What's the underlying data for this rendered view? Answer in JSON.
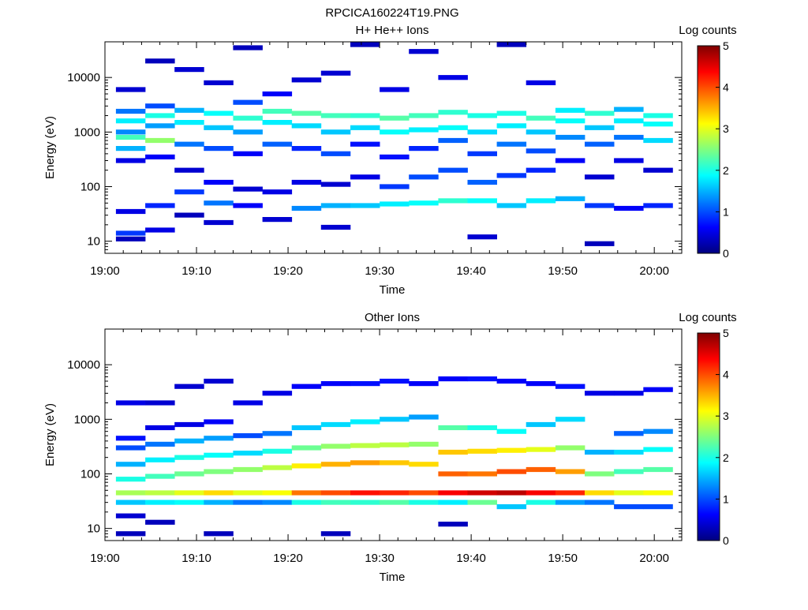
{
  "figure_title": "RPCICA160224T19.PNG",
  "colorbar": {
    "label": "Log counts",
    "min": 0,
    "max": 5,
    "ticks": [
      "0",
      "1",
      "2",
      "3",
      "4",
      "5"
    ],
    "colormap": [
      "#00007f",
      "#0000ff",
      "#007fff",
      "#00ffff",
      "#7fff7f",
      "#ffff00",
      "#ff7f00",
      "#ff0000",
      "#7f0000"
    ]
  },
  "chart_data": [
    {
      "type": "heatmap",
      "title": "H+ He++ Ions",
      "xlabel": "Time",
      "ylabel": "Energy (eV)",
      "x_ticks": [
        "19:00",
        "19:10",
        "19:20",
        "19:30",
        "19:40",
        "19:50",
        "20:00"
      ],
      "x_tick_minutes": [
        0,
        10,
        20,
        30,
        40,
        50,
        60
      ],
      "xlim_minutes": [
        0,
        63
      ],
      "y_scale": "log",
      "ylim": [
        6,
        45000
      ],
      "y_ticks": [
        "10",
        "100",
        "1000",
        "10000"
      ],
      "y_tick_values": [
        10,
        100,
        1000,
        10000
      ],
      "color_scale": "Log counts",
      "time_bins_minutes": [
        1.2,
        4.4,
        7.6,
        10.8,
        14.0,
        17.2,
        20.4,
        23.6,
        26.8,
        30.0,
        33.2,
        36.4,
        39.6,
        42.8,
        46.0,
        49.2,
        52.4,
        55.6,
        58.8
      ],
      "cells": [
        [
          0,
          14.0,
          0.9
        ],
        [
          0,
          300,
          0.5
        ],
        [
          0,
          500,
          1.5
        ],
        [
          0,
          800,
          2.2
        ],
        [
          0,
          1000,
          1.3
        ],
        [
          0,
          1600,
          1.8
        ],
        [
          0,
          2400,
          1.2
        ],
        [
          0,
          35,
          0.5
        ],
        [
          0,
          11,
          0.3
        ],
        [
          0,
          6000,
          0.4
        ],
        [
          1,
          16.0,
          0.5
        ],
        [
          1,
          45,
          0.8
        ],
        [
          1,
          350,
          0.6
        ],
        [
          1,
          700,
          2.6
        ],
        [
          1,
          1300,
          1.4
        ],
        [
          1,
          2000,
          2.0
        ],
        [
          1,
          3000,
          1.0
        ],
        [
          1,
          20000,
          0.3
        ],
        [
          2,
          30,
          0.3
        ],
        [
          2,
          80,
          0.9
        ],
        [
          2,
          200,
          0.4
        ],
        [
          2,
          600,
          1.2
        ],
        [
          2,
          1500,
          1.8
        ],
        [
          2,
          2500,
          1.5
        ],
        [
          2,
          14000,
          0.4
        ],
        [
          3,
          22,
          0.4
        ],
        [
          3,
          50,
          1.2
        ],
        [
          3,
          120,
          0.6
        ],
        [
          3,
          500,
          1.0
        ],
        [
          3,
          1200,
          1.6
        ],
        [
          3,
          2200,
          1.9
        ],
        [
          3,
          8000,
          0.4
        ],
        [
          4,
          45,
          0.6
        ],
        [
          4,
          90,
          0.4
        ],
        [
          4,
          400,
          0.6
        ],
        [
          4,
          1000,
          1.4
        ],
        [
          4,
          1800,
          2.1
        ],
        [
          4,
          3500,
          1.0
        ],
        [
          4,
          35000,
          0.3
        ],
        [
          5,
          25,
          0.4
        ],
        [
          5,
          80,
          0.5
        ],
        [
          5,
          600,
          1.1
        ],
        [
          5,
          1500,
          1.8
        ],
        [
          5,
          2400,
          2.2
        ],
        [
          5,
          5000,
          0.6
        ],
        [
          6,
          40,
          1.3
        ],
        [
          6,
          120,
          0.5
        ],
        [
          6,
          500,
          0.8
        ],
        [
          6,
          1300,
          1.7
        ],
        [
          6,
          2200,
          2.3
        ],
        [
          6,
          9000,
          0.4
        ],
        [
          7,
          18,
          0.4
        ],
        [
          7,
          45,
          1.5
        ],
        [
          7,
          110,
          0.4
        ],
        [
          7,
          400,
          1.0
        ],
        [
          7,
          1000,
          1.6
        ],
        [
          7,
          2000,
          2.2
        ],
        [
          7,
          12000,
          0.4
        ],
        [
          8,
          45,
          1.6
        ],
        [
          8,
          150,
          0.5
        ],
        [
          8,
          600,
          0.7
        ],
        [
          8,
          1200,
          1.7
        ],
        [
          8,
          2000,
          2.1
        ],
        [
          8,
          40000,
          0.3
        ],
        [
          9,
          48,
          1.8
        ],
        [
          9,
          100,
          0.9
        ],
        [
          9,
          350,
          0.7
        ],
        [
          9,
          1000,
          1.9
        ],
        [
          9,
          1800,
          2.3
        ],
        [
          9,
          6000,
          0.5
        ],
        [
          10,
          50,
          1.9
        ],
        [
          10,
          150,
          1.0
        ],
        [
          10,
          500,
          0.8
        ],
        [
          10,
          1100,
          1.8
        ],
        [
          10,
          2000,
          2.2
        ],
        [
          10,
          30000,
          0.4
        ],
        [
          11,
          55,
          2.1
        ],
        [
          11,
          200,
          1.0
        ],
        [
          11,
          700,
          1.1
        ],
        [
          11,
          1200,
          1.9
        ],
        [
          11,
          2300,
          2.1
        ],
        [
          11,
          10000,
          0.5
        ],
        [
          12,
          12,
          0.4
        ],
        [
          12,
          55,
          1.9
        ],
        [
          12,
          120,
          1.1
        ],
        [
          12,
          400,
          0.9
        ],
        [
          12,
          1000,
          1.7
        ],
        [
          12,
          2000,
          2.0
        ],
        [
          13,
          45,
          1.6
        ],
        [
          13,
          160,
          0.9
        ],
        [
          13,
          600,
          1.2
        ],
        [
          13,
          1300,
          1.8
        ],
        [
          13,
          2200,
          2.0
        ],
        [
          13,
          40000,
          0.3
        ],
        [
          14,
          55,
          1.8
        ],
        [
          14,
          200,
          0.8
        ],
        [
          14,
          450,
          1.0
        ],
        [
          14,
          1000,
          1.6
        ],
        [
          14,
          1800,
          2.2
        ],
        [
          14,
          8000,
          0.5
        ],
        [
          15,
          60,
          1.5
        ],
        [
          15,
          300,
          0.6
        ],
        [
          15,
          800,
          1.3
        ],
        [
          15,
          1600,
          1.9
        ],
        [
          15,
          2500,
          1.8
        ],
        [
          16,
          45,
          0.9
        ],
        [
          16,
          150,
          0.4
        ],
        [
          16,
          600,
          1.1
        ],
        [
          16,
          1200,
          1.6
        ],
        [
          16,
          2200,
          2.1
        ],
        [
          16,
          9,
          0.3
        ],
        [
          17,
          40,
          0.6
        ],
        [
          17,
          300,
          0.5
        ],
        [
          17,
          800,
          1.2
        ],
        [
          17,
          1600,
          1.8
        ],
        [
          17,
          2600,
          1.5
        ],
        [
          18,
          45,
          0.8
        ],
        [
          18,
          200,
          0.4
        ],
        [
          18,
          700,
          1.7
        ],
        [
          18,
          1400,
          1.9
        ],
        [
          18,
          2000,
          2.0
        ]
      ]
    },
    {
      "type": "heatmap",
      "title": "Other Ions",
      "xlabel": "Time",
      "ylabel": "Energy (eV)",
      "x_ticks": [
        "19:00",
        "19:10",
        "19:20",
        "19:30",
        "19:40",
        "19:50",
        "20:00"
      ],
      "x_tick_minutes": [
        0,
        10,
        20,
        30,
        40,
        50,
        60
      ],
      "xlim_minutes": [
        0,
        63
      ],
      "y_scale": "log",
      "ylim": [
        6,
        45000
      ],
      "y_ticks": [
        "10",
        "100",
        "1000",
        "10000"
      ],
      "y_tick_values": [
        10,
        100,
        1000,
        10000
      ],
      "color_scale": "Log counts",
      "time_bins_minutes": [
        1.2,
        4.4,
        7.6,
        10.8,
        14.0,
        17.2,
        20.4,
        23.6,
        26.8,
        30.0,
        33.2,
        36.4,
        39.6,
        42.8,
        46.0,
        49.2,
        52.4,
        55.6,
        58.8
      ],
      "cells": [
        [
          0,
          8,
          0.3
        ],
        [
          0,
          17,
          0.4
        ],
        [
          0,
          30,
          1.6
        ],
        [
          0,
          45,
          2.7
        ],
        [
          0,
          80,
          2.0
        ],
        [
          0,
          150,
          1.5
        ],
        [
          0,
          300,
          1.0
        ],
        [
          0,
          450,
          0.7
        ],
        [
          0,
          2000,
          0.5
        ],
        [
          1,
          13,
          0.3
        ],
        [
          1,
          30,
          1.8
        ],
        [
          1,
          45,
          2.8
        ],
        [
          1,
          90,
          2.2
        ],
        [
          1,
          180,
          1.8
        ],
        [
          1,
          350,
          1.2
        ],
        [
          1,
          700,
          0.5
        ],
        [
          1,
          2000,
          0.4
        ],
        [
          2,
          30,
          1.9
        ],
        [
          2,
          45,
          3.0
        ],
        [
          2,
          100,
          2.4
        ],
        [
          2,
          200,
          2.0
        ],
        [
          2,
          400,
          1.5
        ],
        [
          2,
          800,
          0.5
        ],
        [
          2,
          4000,
          0.4
        ],
        [
          3,
          8,
          0.3
        ],
        [
          3,
          30,
          1.5
        ],
        [
          3,
          45,
          3.3
        ],
        [
          3,
          110,
          2.5
        ],
        [
          3,
          220,
          1.9
        ],
        [
          3,
          450,
          1.4
        ],
        [
          3,
          900,
          0.6
        ],
        [
          3,
          5000,
          0.4
        ],
        [
          4,
          30,
          1.2
        ],
        [
          4,
          45,
          3.0
        ],
        [
          4,
          120,
          2.6
        ],
        [
          4,
          240,
          1.7
        ],
        [
          4,
          500,
          1.0
        ],
        [
          4,
          2000,
          0.5
        ],
        [
          5,
          30,
          1.3
        ],
        [
          5,
          45,
          3.1
        ],
        [
          5,
          130,
          2.8
        ],
        [
          5,
          260,
          2.0
        ],
        [
          5,
          550,
          1.2
        ],
        [
          5,
          3000,
          0.5
        ],
        [
          6,
          30,
          2.0
        ],
        [
          6,
          45,
          3.8
        ],
        [
          6,
          140,
          3.2
        ],
        [
          6,
          300,
          2.4
        ],
        [
          6,
          700,
          1.6
        ],
        [
          6,
          4000,
          0.6
        ],
        [
          7,
          8,
          0.3
        ],
        [
          7,
          30,
          2.2
        ],
        [
          7,
          45,
          4.0
        ],
        [
          7,
          150,
          3.5
        ],
        [
          7,
          320,
          2.6
        ],
        [
          7,
          800,
          1.7
        ],
        [
          7,
          4500,
          0.6
        ],
        [
          8,
          30,
          2.1
        ],
        [
          8,
          45,
          4.3
        ],
        [
          8,
          160,
          3.6
        ],
        [
          8,
          330,
          2.8
        ],
        [
          8,
          900,
          1.8
        ],
        [
          8,
          4500,
          0.7
        ],
        [
          9,
          30,
          2.3
        ],
        [
          9,
          45,
          4.2
        ],
        [
          9,
          160,
          3.4
        ],
        [
          9,
          340,
          2.8
        ],
        [
          9,
          1000,
          1.6
        ],
        [
          9,
          5000,
          0.7
        ],
        [
          10,
          30,
          2.0
        ],
        [
          10,
          45,
          4.0
        ],
        [
          10,
          150,
          3.3
        ],
        [
          10,
          350,
          2.6
        ],
        [
          10,
          1100,
          1.4
        ],
        [
          10,
          4500,
          0.6
        ],
        [
          11,
          12,
          0.3
        ],
        [
          11,
          30,
          1.8
        ],
        [
          11,
          45,
          4.4
        ],
        [
          11,
          100,
          3.9
        ],
        [
          11,
          250,
          3.4
        ],
        [
          11,
          700,
          2.3
        ],
        [
          11,
          5500,
          0.6
        ],
        [
          12,
          30,
          2.4
        ],
        [
          12,
          45,
          4.6
        ],
        [
          12,
          100,
          3.8
        ],
        [
          12,
          260,
          3.3
        ],
        [
          12,
          700,
          2.0
        ],
        [
          12,
          5500,
          0.7
        ],
        [
          13,
          25,
          1.6
        ],
        [
          13,
          45,
          4.7
        ],
        [
          13,
          110,
          4.0
        ],
        [
          13,
          270,
          3.2
        ],
        [
          13,
          600,
          1.9
        ],
        [
          13,
          5000,
          0.6
        ],
        [
          14,
          30,
          2.0
        ],
        [
          14,
          45,
          4.4
        ],
        [
          14,
          120,
          3.9
        ],
        [
          14,
          280,
          3.0
        ],
        [
          14,
          800,
          1.6
        ],
        [
          14,
          4500,
          0.6
        ],
        [
          15,
          30,
          1.4
        ],
        [
          15,
          45,
          4.2
        ],
        [
          15,
          110,
          3.6
        ],
        [
          15,
          300,
          2.6
        ],
        [
          15,
          1000,
          1.7
        ],
        [
          15,
          4000,
          0.7
        ],
        [
          16,
          30,
          1.2
        ],
        [
          16,
          45,
          3.3
        ],
        [
          16,
          100,
          2.5
        ],
        [
          16,
          250,
          1.5
        ],
        [
          16,
          3000,
          0.5
        ],
        [
          17,
          25,
          1.0
        ],
        [
          17,
          45,
          3.0
        ],
        [
          17,
          110,
          2.2
        ],
        [
          17,
          250,
          1.7
        ],
        [
          17,
          550,
          1.1
        ],
        [
          17,
          3000,
          0.5
        ],
        [
          18,
          25,
          1.0
        ],
        [
          18,
          45,
          3.1
        ],
        [
          18,
          120,
          2.3
        ],
        [
          18,
          280,
          1.9
        ],
        [
          18,
          600,
          1.3
        ],
        [
          18,
          3500,
          0.6
        ]
      ]
    }
  ]
}
